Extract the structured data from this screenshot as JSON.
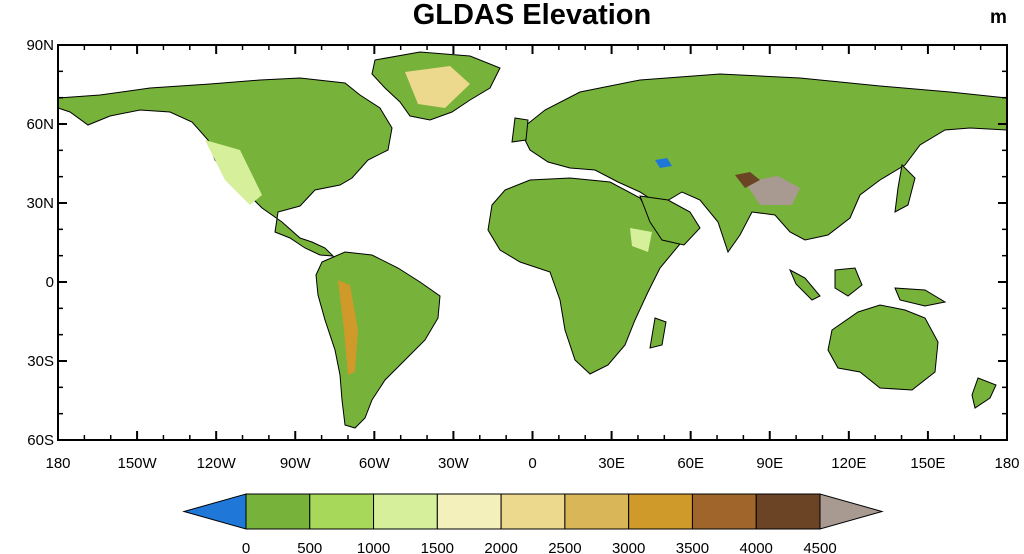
{
  "title": "GLDAS Elevation",
  "units": "m",
  "map": {
    "projection": "equirectangular",
    "lon_range": [
      -180,
      180
    ],
    "lat_range": [
      -60,
      90
    ],
    "background_color": "#ffffff",
    "land_base_color": "#77b23a",
    "lat_ticks": [
      {
        "value": 90,
        "label": "90N"
      },
      {
        "value": 60,
        "label": "60N"
      },
      {
        "value": 30,
        "label": "30N"
      },
      {
        "value": 0,
        "label": "0"
      },
      {
        "value": -30,
        "label": "30S"
      },
      {
        "value": -60,
        "label": "60S"
      }
    ],
    "lon_ticks": [
      {
        "value": -180,
        "label": "180"
      },
      {
        "value": -150,
        "label": "150W"
      },
      {
        "value": -120,
        "label": "120W"
      },
      {
        "value": -90,
        "label": "90W"
      },
      {
        "value": -60,
        "label": "60W"
      },
      {
        "value": -30,
        "label": "30W"
      },
      {
        "value": 0,
        "label": "0"
      },
      {
        "value": 30,
        "label": "30E"
      },
      {
        "value": 60,
        "label": "60E"
      },
      {
        "value": 90,
        "label": "90E"
      },
      {
        "value": 120,
        "label": "120E"
      },
      {
        "value": 150,
        "label": "150E"
      },
      {
        "value": 180,
        "label": "180"
      }
    ]
  },
  "colorbar": {
    "levels": [
      "0",
      "500",
      "1000",
      "1500",
      "2000",
      "2500",
      "3000",
      "3500",
      "4000",
      "4500"
    ],
    "colors": [
      "#1f78d8",
      "#77b23a",
      "#a8d85a",
      "#d5ef9b",
      "#f4f0bb",
      "#ecd98d",
      "#d9b759",
      "#cf9a2a",
      "#a0652a",
      "#6a4424",
      "#a89a90"
    ]
  }
}
